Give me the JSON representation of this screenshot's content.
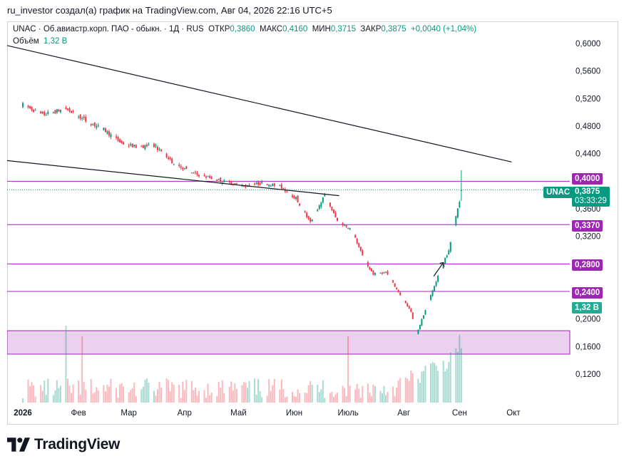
{
  "header": {
    "author_line": "ru_investor создал(а) график на TradingView.com, Авг 04, 2026 22:16 UTC+5"
  },
  "legend": {
    "symbol": "UNAC",
    "description": "Об.авиастр.корп. ПАО - обыкн.",
    "interval": "1Д",
    "exchange": "RUS",
    "open_label": "ОТКР",
    "open": "0,3860",
    "high_label": "МАКС",
    "high": "0,4160",
    "low_label": "МИН",
    "low": "0,3715",
    "close_label": "ЗАКР",
    "close": "0,3875",
    "change": "+0,0040 (+1,04%)",
    "volume_label": "Объём",
    "volume_value": "1,32 B"
  },
  "price_tags": {
    "level_0400": "0,4000",
    "last_symbol": "UNAC",
    "last_price": "0,3875",
    "countdown": "03:33:29",
    "level_0337": "0,3370",
    "level_0280": "0,2800",
    "level_0240": "0,2400",
    "volume": "1,32 B"
  },
  "colors": {
    "up": "#089981",
    "down": "#f23645",
    "level_line": "#9c27b0",
    "zone_fill": "#e1bee7",
    "trendline": "#131722"
  },
  "logo": {
    "text": "TradingView",
    "icon": "tradingview-logo-icon"
  },
  "chart_data": {
    "type": "candlestick",
    "y_axis_labels": [
      "0,6000",
      "0,5600",
      "0,5200",
      "0,4800",
      "0,4400",
      "0,3600",
      "0,3200",
      "0,2000",
      "0,1600",
      "0,1200"
    ],
    "y_axis_values": [
      0.6,
      0.56,
      0.52,
      0.48,
      0.44,
      0.36,
      0.32,
      0.2,
      0.16,
      0.12
    ],
    "ylim": [
      0.1,
      0.62
    ],
    "x_axis_labels": [
      "2026",
      "Фев",
      "Мар",
      "Апр",
      "Май",
      "Июн",
      "Июль",
      "Авг",
      "Сен",
      "Окт"
    ],
    "month_ticks": [
      "2026-01",
      "2026-02",
      "2026-03",
      "2026-04",
      "2026-05",
      "2026-06",
      "2026-07",
      "2026-08",
      "2026-09",
      "2026-10"
    ],
    "price_path": [
      [
        "2026-01-01",
        0.511
      ],
      [
        "2026-01-12",
        0.496
      ],
      [
        "2026-01-20",
        0.502
      ],
      [
        "2026-01-25",
        0.505
      ],
      [
        "2026-02-05",
        0.488
      ],
      [
        "2026-02-15",
        0.475
      ],
      [
        "2026-02-25",
        0.455
      ],
      [
        "2026-03-05",
        0.45
      ],
      [
        "2026-03-15",
        0.452
      ],
      [
        "2026-03-25",
        0.428
      ],
      [
        "2026-04-05",
        0.412
      ],
      [
        "2026-04-15",
        0.405
      ],
      [
        "2026-04-25",
        0.398
      ],
      [
        "2026-05-05",
        0.393
      ],
      [
        "2026-05-15",
        0.398
      ],
      [
        "2026-05-25",
        0.391
      ],
      [
        "2026-06-02",
        0.375
      ],
      [
        "2026-06-10",
        0.34
      ],
      [
        "2026-06-18",
        0.38
      ],
      [
        "2026-06-25",
        0.342
      ],
      [
        "2026-07-03",
        0.33
      ],
      [
        "2026-07-10",
        0.285
      ],
      [
        "2026-07-15",
        0.265
      ],
      [
        "2026-07-22",
        0.268
      ],
      [
        "2026-07-30",
        0.235
      ],
      [
        "2026-08-05",
        0.21
      ],
      [
        "2026-08-08",
        0.178
      ],
      [
        "2026-08-14",
        0.22
      ],
      [
        "2026-08-20",
        0.262
      ],
      [
        "2026-08-26",
        0.3
      ],
      [
        "2026-08-29",
        0.336
      ],
      [
        "2026-09-01",
        0.372
      ],
      [
        "2026-09-02",
        0.388
      ]
    ],
    "last": {
      "open": 0.386,
      "high": 0.416,
      "low": 0.3715,
      "close": 0.3875
    },
    "horizontal_levels": [
      0.4,
      0.337,
      0.28,
      0.24
    ],
    "support_zone": [
      0.149,
      0.183
    ],
    "trendlines": [
      {
        "from": [
          "2026-01-01",
          0.597
        ],
        "to": [
          "2026-09-30",
          0.428
        ]
      },
      {
        "from": [
          "2026-01-01",
          0.43
        ],
        "to": [
          "2026-06-26",
          0.379
        ]
      }
    ],
    "volume_spike_dates": [
      "2026-01-25",
      "2026-02-03",
      "2026-07-01",
      "2026-09-01"
    ],
    "grid": false
  }
}
